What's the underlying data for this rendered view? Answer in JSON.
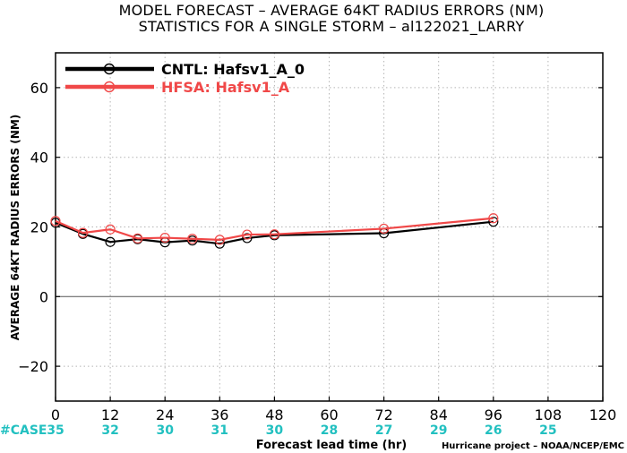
{
  "header": {
    "title_line1": "MODEL FORECAST – AVERAGE 64KT RADIUS ERRORS (NM)",
    "title_line2": "STATISTICS FOR A SINGLE STORM – al122021_LARRY"
  },
  "footer": {
    "credit": "Hurricane project – NOAA/NCEP/EMC",
    "case_label": "#CASE"
  },
  "colors": {
    "cntl": "#000000",
    "hfsa": "#f04848",
    "case": "#22c0c0",
    "grid": "#b4b4b4"
  },
  "chart_data": {
    "type": "line",
    "title": "MODEL FORECAST – AVERAGE 64KT RADIUS ERRORS (NM)",
    "subtitle": "STATISTICS FOR A SINGLE STORM – al122021_LARRY",
    "xlabel": "Forecast lead time (hr)",
    "ylabel": "AVERAGE 64KT RADIUS ERRORS (NM)",
    "xlim": [
      0,
      120
    ],
    "ylim": [
      -30,
      70
    ],
    "xticks": [
      "0",
      "12",
      "24",
      "36",
      "48",
      "60",
      "72",
      "84",
      "96",
      "108",
      "120"
    ],
    "yticks": [
      "60",
      "40",
      "20",
      "0",
      "−20"
    ],
    "grid": true,
    "legend_position": "top-left",
    "cases": [
      {
        "x": 0,
        "label": "35"
      },
      {
        "x": 12,
        "label": "32"
      },
      {
        "x": 24,
        "label": "30"
      },
      {
        "x": 36,
        "label": "31"
      },
      {
        "x": 48,
        "label": "30"
      },
      {
        "x": 60,
        "label": "28"
      },
      {
        "x": 72,
        "label": "27"
      },
      {
        "x": 84,
        "label": "29"
      },
      {
        "x": 96,
        "label": "26"
      },
      {
        "x": 108,
        "label": "25"
      }
    ],
    "series": [
      {
        "name": "CNTL: Hafsv1_A_0",
        "color": "#000000",
        "x": [
          0,
          6,
          12,
          18,
          24,
          30,
          36,
          42,
          48,
          72,
          96
        ],
        "y": [
          21.2,
          18.0,
          15.7,
          16.5,
          15.6,
          16.1,
          15.2,
          16.8,
          17.6,
          18.2,
          21.5
        ]
      },
      {
        "name": "HFSA: Hafsv1_A",
        "color": "#f04848",
        "x": [
          0,
          6,
          12,
          18,
          24,
          30,
          36,
          42,
          48,
          72,
          96
        ],
        "y": [
          21.7,
          18.3,
          19.3,
          16.7,
          16.9,
          16.6,
          16.3,
          17.8,
          17.9,
          19.5,
          22.5
        ]
      }
    ]
  }
}
